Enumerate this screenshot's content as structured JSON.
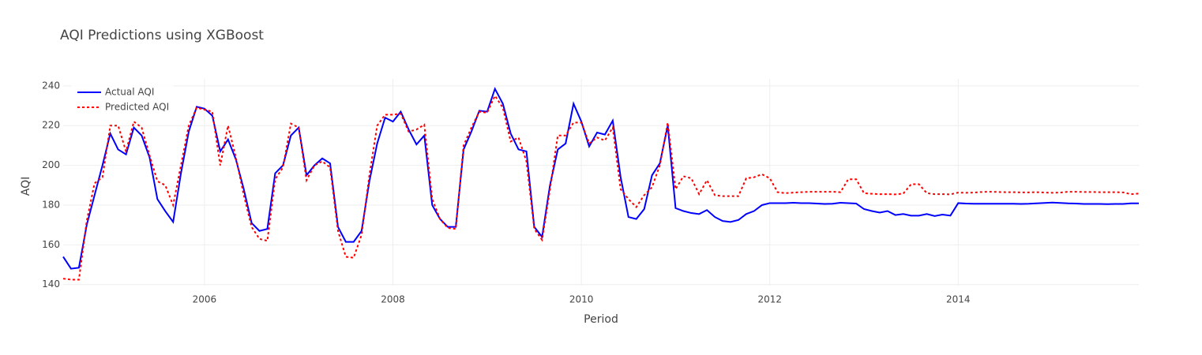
{
  "chart_data": {
    "type": "line",
    "title": "AQI Predictions using XGBoost",
    "x_label": "Period",
    "y_label": "AQI",
    "x": [
      2004.5,
      2004.583,
      2004.667,
      2004.75,
      2004.833,
      2004.917,
      2005,
      2005.083,
      2005.167,
      2005.25,
      2005.333,
      2005.417,
      2005.5,
      2005.583,
      2005.667,
      2005.75,
      2005.833,
      2005.917,
      2006,
      2006.083,
      2006.167,
      2006.25,
      2006.333,
      2006.417,
      2006.5,
      2006.583,
      2006.667,
      2006.75,
      2006.833,
      2006.917,
      2007,
      2007.083,
      2007.167,
      2007.25,
      2007.333,
      2007.417,
      2007.5,
      2007.583,
      2007.667,
      2007.75,
      2007.833,
      2007.917,
      2008,
      2008.083,
      2008.167,
      2008.25,
      2008.333,
      2008.417,
      2008.5,
      2008.583,
      2008.667,
      2008.75,
      2008.833,
      2008.917,
      2009,
      2009.083,
      2009.167,
      2009.25,
      2009.333,
      2009.417,
      2009.5,
      2009.583,
      2009.667,
      2009.75,
      2009.833,
      2009.917,
      2010,
      2010.083,
      2010.167,
      2010.25,
      2010.333,
      2010.417,
      2010.5,
      2010.583,
      2010.667,
      2010.75,
      2010.833,
      2010.917,
      2011,
      2011.083,
      2011.167,
      2011.25,
      2011.333,
      2011.417,
      2011.5,
      2011.583,
      2011.667,
      2011.75,
      2011.833,
      2011.917,
      2012,
      2012.083,
      2012.167,
      2012.25,
      2012.333,
      2012.417,
      2012.5,
      2012.583,
      2012.667,
      2012.75,
      2012.833,
      2012.917,
      2013,
      2013.083,
      2013.167,
      2013.25,
      2013.333,
      2013.417,
      2013.5,
      2013.583,
      2013.667,
      2013.75,
      2013.833,
      2013.917,
      2014,
      2014.083,
      2014.167,
      2014.25,
      2014.333,
      2014.417,
      2014.5,
      2014.583,
      2014.667,
      2014.75,
      2014.833,
      2014.917,
      2015,
      2015.083,
      2015.167,
      2015.25,
      2015.333,
      2015.417,
      2015.5,
      2015.583,
      2015.667,
      2015.75,
      2015.833,
      2015.917
    ],
    "series": [
      {
        "name": "Actual AQI",
        "color": "#0000ff",
        "dash": "solid",
        "values": [
          154,
          148,
          148.5,
          170,
          185,
          200,
          216,
          208,
          205.5,
          219,
          215,
          204,
          183,
          177,
          171.5,
          196,
          217,
          229.5,
          228.5,
          225,
          207,
          213,
          203,
          188,
          171,
          167,
          168,
          196,
          200,
          215,
          219,
          195,
          200,
          203.5,
          201,
          169,
          161.5,
          161.5,
          167,
          192,
          211,
          224,
          222,
          227,
          218,
          210.5,
          215,
          180,
          173,
          169,
          169,
          208,
          217,
          227.5,
          227,
          238.5,
          231,
          216,
          208,
          207,
          169,
          164,
          190,
          208,
          211,
          231,
          222,
          209.5,
          216.5,
          215.5,
          222.5,
          194,
          174,
          173,
          178,
          195,
          201,
          220,
          178.5,
          177,
          176,
          175.5,
          177.5,
          174,
          172,
          171.5,
          172.5,
          175.5,
          177,
          180,
          181,
          181,
          181,
          181.2,
          181,
          181,
          180.8,
          180.6,
          180.7,
          181.2,
          181,
          180.8,
          178,
          177,
          176.2,
          177,
          175,
          175.5,
          174.7,
          174.7,
          175.5,
          174.5,
          175.2,
          174.7,
          181,
          180.8,
          180.7,
          180.7,
          180.7,
          180.7,
          180.7,
          180.7,
          180.6,
          180.7,
          180.9,
          181.1,
          181.3,
          181.1,
          180.9,
          180.8,
          180.6,
          180.6,
          180.6,
          180.5,
          180.6,
          180.6,
          180.9,
          180.9
        ]
      },
      {
        "name": "Predicted AQI",
        "color": "#ff0000",
        "dash": "dot",
        "values": [
          143,
          142.5,
          142.5,
          172,
          191,
          194,
          220,
          220,
          207,
          222,
          219,
          205,
          192,
          190,
          180,
          200,
          220,
          229,
          228,
          227,
          200,
          220,
          204,
          185,
          169,
          163,
          162,
          193,
          199,
          221,
          219,
          192.5,
          200,
          202,
          199,
          167,
          154,
          153.5,
          165,
          195,
          220,
          225.5,
          225.5,
          226,
          217,
          218,
          220.5,
          183,
          173,
          168.5,
          168,
          210,
          219,
          227,
          226.5,
          235,
          229,
          212,
          214,
          202,
          168,
          162.5,
          188,
          215,
          215,
          221.5,
          221.5,
          211,
          214,
          212.5,
          219,
          188,
          183,
          179,
          185,
          189,
          200,
          221.5,
          188,
          194.5,
          193.5,
          185.5,
          192.5,
          185,
          184.5,
          184.5,
          184.5,
          193.5,
          194,
          195.5,
          193.5,
          186.5,
          186,
          186.3,
          186.5,
          186.7,
          186.7,
          186.7,
          186.7,
          186.5,
          193,
          193,
          186,
          185.7,
          185.5,
          185.5,
          185.4,
          185.8,
          190.5,
          190.5,
          186,
          185.5,
          185.5,
          185.4,
          186.3,
          186.2,
          186.3,
          186.6,
          186.7,
          186.6,
          186.5,
          186.5,
          186.4,
          186.4,
          186.5,
          186.3,
          186.2,
          186.3,
          186.7,
          186.7,
          186.6,
          186.6,
          186.5,
          186.5,
          186.5,
          186.4,
          185.5,
          185.8
        ]
      }
    ],
    "xlim": [
      2004.5,
      2015.917
    ],
    "xticks": [
      2006,
      2008,
      2010,
      2012,
      2014
    ],
    "ylim": [
      139.5,
      243.5
    ],
    "yticks": [
      140,
      160,
      180,
      200,
      220,
      240
    ],
    "grid": true,
    "legend": "top-left"
  }
}
